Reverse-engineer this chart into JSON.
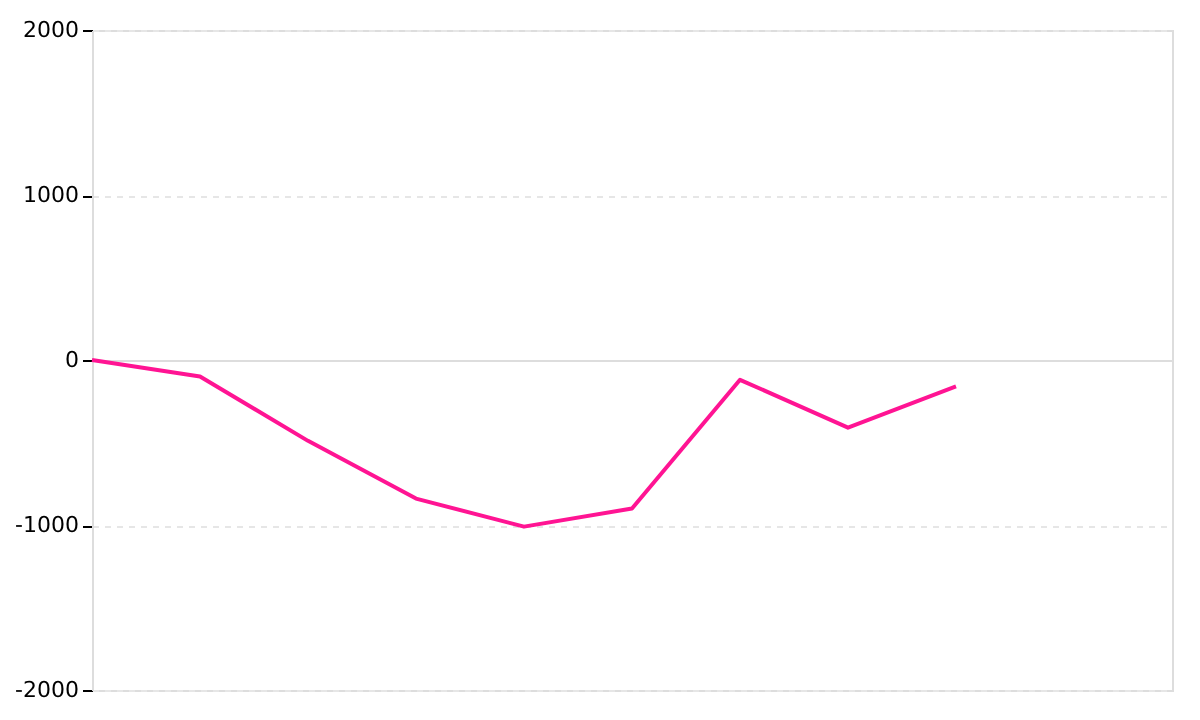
{
  "chart_data": {
    "type": "line",
    "categories": [
      null,
      null,
      null,
      null,
      null,
      null,
      null,
      null,
      null,
      null,
      null
    ],
    "series": [
      {
        "color": "#ff1493",
        "values": [
          0,
          -100,
          -490,
          -840,
          -1010,
          -900,
          -120,
          -410,
          -160,
          null,
          null
        ]
      }
    ],
    "ylim": [
      -2000,
      2000
    ],
    "yticks": [
      -2000,
      -1000,
      0,
      1000,
      2000
    ],
    "tick_labels": "y",
    "grid": "y",
    "marker": "none",
    "line_style": "solid"
  }
}
